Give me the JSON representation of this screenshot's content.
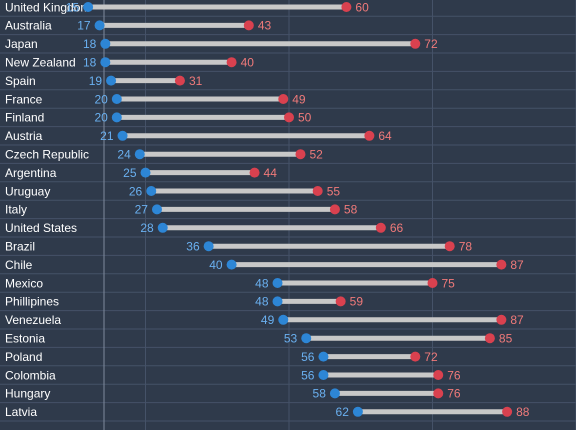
{
  "chart_data": {
    "type": "dumbbell",
    "title": "",
    "xlabel": "",
    "ylabel": "",
    "xlim": [
      0,
      100
    ],
    "grid": true,
    "colors": {
      "min": "#2d86d6",
      "max": "#d9414f",
      "bar": "#c8c8c8",
      "min_label": "#6ab0f0",
      "max_label": "#f07a7a",
      "background": "#2f3a4b"
    },
    "categories": [
      "United Kingdom",
      "Australia",
      "Japan",
      "New Zealand",
      "Spain",
      "France",
      "Finland",
      "Austria",
      "Czech Republic",
      "Argentina",
      "Uruguay",
      "Italy",
      "United States",
      "Brazil",
      "Chile",
      "Mexico",
      "Phillipines",
      "Venezuela",
      "Estonia",
      "Poland",
      "Colombia",
      "Hungary",
      "Latvia"
    ],
    "series": [
      {
        "values": [
          15,
          17,
          18,
          18,
          19,
          20,
          20,
          21,
          24,
          25,
          26,
          27,
          28,
          36,
          40,
          48,
          48,
          49,
          53,
          56,
          56,
          58,
          62
        ]
      },
      {
        "values": [
          60,
          43,
          72,
          40,
          31,
          49,
          50,
          64,
          52,
          44,
          55,
          58,
          66,
          78,
          87,
          75,
          59,
          87,
          85,
          72,
          76,
          76,
          88
        ]
      }
    ]
  }
}
